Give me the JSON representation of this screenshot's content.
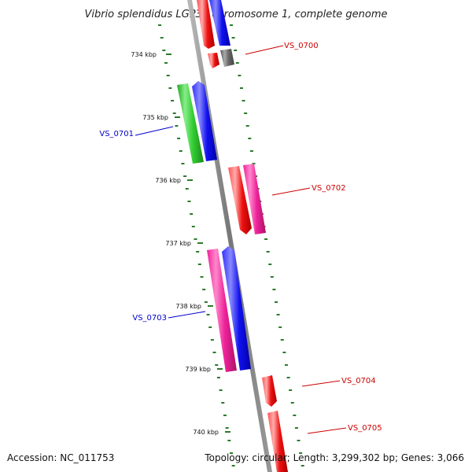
{
  "title": "Vibrio splendidus LGP32 chromosome 1, complete genome",
  "footer": {
    "accession": "Accession: NC_011753",
    "topology": "Topology: circular; Length: 3,299,302 bp; Genes: 3,066"
  },
  "colors": {
    "red": "#ee1111",
    "blue": "#1111ee",
    "green": "#33cc33",
    "magenta": "#ee2299",
    "gray": "#666666",
    "backbone": "#8a8a8a",
    "tick": "#2a7a2a",
    "red_label": "#cc0000",
    "blue_label": "#0000cc"
  },
  "kbp_labels": [
    "734 kbp",
    "735 kbp",
    "736 kbp",
    "737 kbp",
    "738 kbp",
    "739 kbp",
    "740 kbp"
  ],
  "gene_labels": [
    {
      "id": "VS_0700",
      "color": "red"
    },
    {
      "id": "VS_0701",
      "color": "blue"
    },
    {
      "id": "VS_0702",
      "color": "red"
    },
    {
      "id": "VS_0703",
      "color": "blue"
    },
    {
      "id": "VS_0704",
      "color": "red"
    },
    {
      "id": "VS_0705",
      "color": "red"
    }
  ]
}
